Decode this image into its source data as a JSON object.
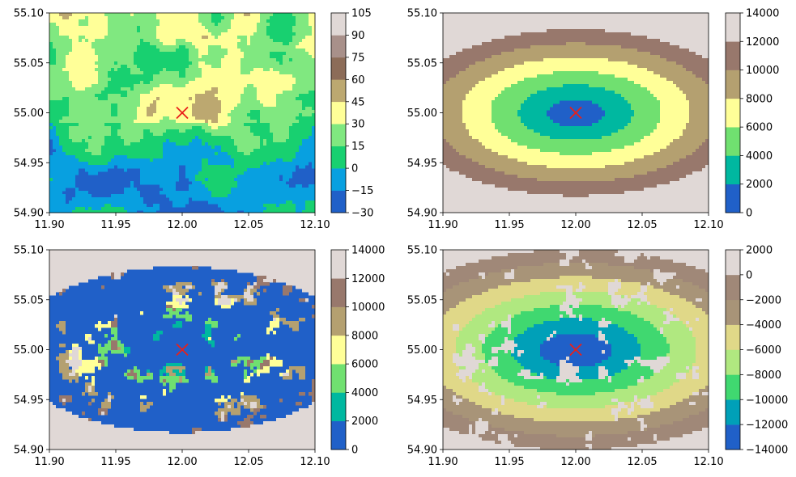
{
  "chart_data": [
    {
      "type": "heatmap",
      "xlim": [
        11.9,
        12.1
      ],
      "ylim": [
        54.9,
        55.1
      ],
      "x_ticks": [
        "11.90",
        "11.95",
        "12.00",
        "12.05",
        "12.10"
      ],
      "y_ticks": [
        "54.90",
        "54.95",
        "55.00",
        "55.05",
        "55.10"
      ],
      "marker": {
        "x": 12.0,
        "y": 55.0,
        "symbol": "x",
        "color": "#e8201a"
      },
      "colorbar": {
        "levels": [
          -30,
          -15,
          0,
          15,
          30,
          45,
          60,
          75,
          90,
          105
        ],
        "tick_labels": [
          "−30",
          "−15",
          "0",
          "15",
          "30",
          "45",
          "60",
          "75",
          "90",
          "105"
        ],
        "colors": [
          "#2060c8",
          "#08a0e0",
          "#18d070",
          "#80e880",
          "#ffff98",
          "#bca870",
          "#8c6c58",
          "#a8908a",
          "#e0d8d6"
        ]
      }
    },
    {
      "type": "heatmap",
      "xlim": [
        11.9,
        12.1
      ],
      "ylim": [
        54.9,
        55.1
      ],
      "x_ticks": [
        "11.90",
        "11.95",
        "12.00",
        "12.05",
        "12.10"
      ],
      "y_ticks": [
        "54.90",
        "54.95",
        "55.00",
        "55.05",
        "55.10"
      ],
      "marker": {
        "x": 12.0,
        "y": 55.0,
        "symbol": "x",
        "color": "#e8201a"
      },
      "colorbar": {
        "levels": [
          0,
          2000,
          4000,
          6000,
          8000,
          10000,
          12000,
          14000
        ],
        "tick_labels": [
          "0",
          "2000",
          "4000",
          "6000",
          "8000",
          "10000",
          "12000",
          "14000"
        ],
        "colors": [
          "#2060c8",
          "#00b8a0",
          "#70e070",
          "#ffff98",
          "#b4a070",
          "#98786c",
          "#e0d8d6"
        ]
      }
    },
    {
      "type": "heatmap",
      "xlim": [
        11.9,
        12.1
      ],
      "ylim": [
        54.9,
        55.1
      ],
      "x_ticks": [
        "11.90",
        "11.95",
        "12.00",
        "12.05",
        "12.10"
      ],
      "y_ticks": [
        "54.90",
        "54.95",
        "55.00",
        "55.05",
        "55.10"
      ],
      "marker": {
        "x": 12.0,
        "y": 55.0,
        "symbol": "x",
        "color": "#e8201a"
      },
      "colorbar": {
        "levels": [
          0,
          2000,
          4000,
          6000,
          8000,
          10000,
          12000,
          14000
        ],
        "tick_labels": [
          "0",
          "2000",
          "4000",
          "6000",
          "8000",
          "10000",
          "12000",
          "14000"
        ],
        "colors": [
          "#2060c8",
          "#00b8a0",
          "#70e070",
          "#ffff98",
          "#b4a070",
          "#98786c",
          "#e0d8d6"
        ]
      }
    },
    {
      "type": "heatmap",
      "xlim": [
        11.9,
        12.1
      ],
      "ylim": [
        54.9,
        55.1
      ],
      "x_ticks": [
        "11.90",
        "11.95",
        "12.00",
        "12.05",
        "12.10"
      ],
      "y_ticks": [
        "54.90",
        "54.95",
        "55.00",
        "55.05",
        "55.10"
      ],
      "marker": {
        "x": 12.0,
        "y": 55.0,
        "symbol": "x",
        "color": "#e8201a"
      },
      "colorbar": {
        "levels": [
          -14000,
          -12000,
          -10000,
          -8000,
          -6000,
          -4000,
          -2000,
          0,
          2000
        ],
        "tick_labels": [
          "−14000",
          "−12000",
          "−10000",
          "−8000",
          "−6000",
          "−4000",
          "−2000",
          "0",
          "2000"
        ],
        "colors": [
          "#2060c8",
          "#00a0b8",
          "#40d870",
          "#b0e880",
          "#e0d888",
          "#a89478",
          "#a08878",
          "#e0d8d6"
        ]
      }
    }
  ]
}
